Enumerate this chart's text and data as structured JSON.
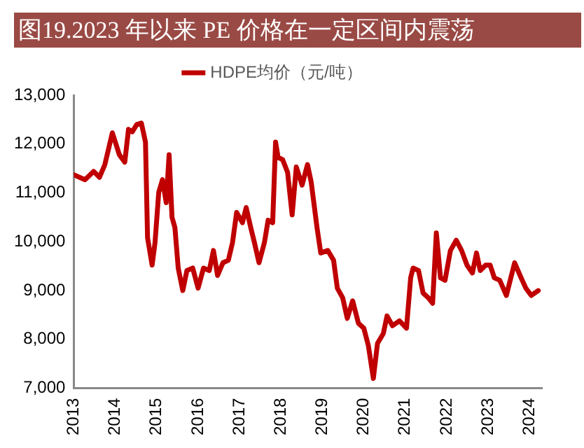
{
  "chart_data": {
    "type": "line",
    "title": "图19.2023 年以来 PE 价格在一定区间内震荡",
    "xlim": [
      2013,
      2024.3
    ],
    "xticks": [
      2013,
      2014,
      2015,
      2016,
      2017,
      2018,
      2019,
      2020,
      2021,
      2022,
      2023,
      2024
    ],
    "ylim": [
      7000,
      13000
    ],
    "yticks": [
      {
        "value": 7000,
        "label": "7,000"
      },
      {
        "value": 8000,
        "label": "8,000"
      },
      {
        "value": 9000,
        "label": "9,000"
      },
      {
        "value": 10000,
        "label": "10,000"
      },
      {
        "value": 11000,
        "label": "11,000"
      },
      {
        "value": 12000,
        "label": "12,000"
      },
      {
        "value": 13000,
        "label": "13,000"
      }
    ],
    "grid": false,
    "legend": "top",
    "marker": "none",
    "line_style": "solid",
    "series": [
      {
        "name": "HDPE均价（元/吨）",
        "color": "#c00000",
        "x": [
          2013.0,
          2013.27,
          2013.48,
          2013.62,
          2013.75,
          2013.93,
          2014.1,
          2014.23,
          2014.32,
          2014.41,
          2014.52,
          2014.63,
          2014.73,
          2014.78,
          2014.89,
          2014.96,
          2015.05,
          2015.14,
          2015.23,
          2015.3,
          2015.37,
          2015.44,
          2015.52,
          2015.63,
          2015.73,
          2015.87,
          2016.0,
          2016.13,
          2016.27,
          2016.37,
          2016.47,
          2016.6,
          2016.73,
          2016.83,
          2016.93,
          2017.07,
          2017.16,
          2017.27,
          2017.36,
          2017.47,
          2017.6,
          2017.69,
          2017.8,
          2017.87,
          2017.93,
          2018.04,
          2018.16,
          2018.27,
          2018.37,
          2018.51,
          2018.64,
          2018.73,
          2018.87,
          2018.96,
          2019.13,
          2019.27,
          2019.36,
          2019.49,
          2019.6,
          2019.73,
          2019.87,
          2020.0,
          2020.11,
          2020.23,
          2020.33,
          2020.47,
          2020.56,
          2020.69,
          2020.86,
          2021.03,
          2021.13,
          2021.19,
          2021.32,
          2021.43,
          2021.56,
          2021.66,
          2021.75,
          2021.85,
          2021.96,
          2022.09,
          2022.23,
          2022.36,
          2022.49,
          2022.62,
          2022.72,
          2022.81,
          2022.94,
          2023.05,
          2023.15,
          2023.28,
          2023.44,
          2023.64,
          2023.77,
          2023.91,
          2024.04,
          2024.21
        ],
        "values": [
          11370,
          11270,
          11440,
          11320,
          11580,
          12230,
          11780,
          11630,
          12300,
          12250,
          12400,
          12430,
          12040,
          10080,
          9520,
          9980,
          11010,
          11270,
          10800,
          11780,
          10500,
          10290,
          9460,
          9000,
          9410,
          9460,
          9050,
          9460,
          9410,
          9820,
          9310,
          9570,
          9620,
          9980,
          10600,
          10390,
          10700,
          10290,
          9980,
          9570,
          9980,
          10440,
          10390,
          12040,
          11730,
          11680,
          11420,
          10550,
          11530,
          11160,
          11580,
          11220,
          10290,
          9770,
          9820,
          9620,
          9050,
          8850,
          8430,
          8790,
          8330,
          8230,
          7870,
          7200,
          7920,
          8120,
          8480,
          8280,
          8380,
          8230,
          9260,
          9460,
          9410,
          8950,
          8850,
          8740,
          10180,
          9260,
          9210,
          9820,
          10030,
          9820,
          9520,
          9360,
          9770,
          9410,
          9520,
          9520,
          9260,
          9210,
          8900,
          9570,
          9310,
          9050,
          8900,
          9000
        ]
      }
    ]
  }
}
